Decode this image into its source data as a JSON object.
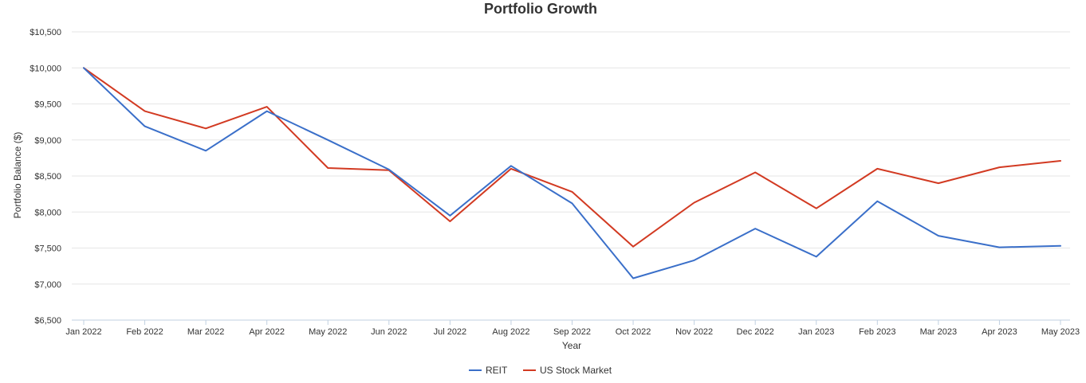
{
  "chart_data": {
    "type": "line",
    "title": "Portfolio Growth",
    "xlabel": "Year",
    "ylabel": "Portfolio Balance ($)",
    "ylim": [
      6500,
      10500
    ],
    "y_ticks": [
      6500,
      7000,
      7500,
      8000,
      8500,
      9000,
      9500,
      10000,
      10500
    ],
    "y_tick_labels": [
      "$6,500",
      "$7,000",
      "$7,500",
      "$8,000",
      "$8,500",
      "$9,000",
      "$9,500",
      "$10,000",
      "$10,500"
    ],
    "grid": true,
    "legend_position": "bottom-center",
    "categories": [
      "Jan 2022",
      "Feb 2022",
      "Mar 2022",
      "Apr 2022",
      "May 2022",
      "Jun 2022",
      "Jul 2022",
      "Aug 2022",
      "Sep 2022",
      "Oct 2022",
      "Nov 2022",
      "Dec 2022",
      "Jan 2023",
      "Feb 2023",
      "Mar 2023",
      "Apr 2023",
      "May 2023"
    ],
    "series": [
      {
        "name": "REIT",
        "color": "#3a6fc9",
        "values": [
          10000,
          9190,
          8850,
          9400,
          9000,
          8590,
          7950,
          8640,
          8120,
          7080,
          7330,
          7770,
          7380,
          8150,
          7670,
          7510,
          7530
        ]
      },
      {
        "name": "US Stock Market",
        "color": "#d23a22",
        "values": [
          10000,
          9400,
          9160,
          9460,
          8610,
          8580,
          7870,
          8600,
          8280,
          7520,
          8130,
          8550,
          8050,
          8600,
          8400,
          8620,
          8710
        ]
      }
    ]
  }
}
